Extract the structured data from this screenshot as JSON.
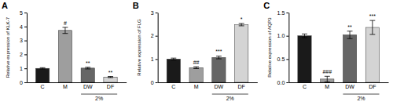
{
  "chart_data": [
    {
      "type": "bar",
      "title": "A",
      "ylabel": "Relative expression of KLK-7",
      "categories": [
        "C",
        "M",
        "DW",
        "DF"
      ],
      "values": [
        1.0,
        3.72,
        1.02,
        0.38
      ],
      "errors": [
        0.05,
        0.22,
        0.06,
        0.04
      ],
      "colors": [
        "#1a1a1a",
        "#9e9e9e",
        "#666666",
        "#d4d4d4"
      ],
      "ylim": [
        0,
        5
      ],
      "yticks": [
        0,
        1,
        2,
        3,
        4,
        5
      ],
      "annotations": [
        null,
        "#",
        "**",
        "**"
      ],
      "bracket": {
        "label": "2%",
        "categories": [
          "DW",
          "DF"
        ]
      }
    },
    {
      "type": "bar",
      "title": "B",
      "ylabel": "Relative expression of FLG",
      "categories": [
        "C",
        "M",
        "DW",
        "DF"
      ],
      "values": [
        1.0,
        0.63,
        1.07,
        2.48
      ],
      "errors": [
        0.04,
        0.04,
        0.06,
        0.05
      ],
      "colors": [
        "#1a1a1a",
        "#9e9e9e",
        "#666666",
        "#d4d4d4"
      ],
      "ylim": [
        0,
        3
      ],
      "yticks": [
        0,
        1,
        2,
        3
      ],
      "annotations": [
        null,
        "##",
        "***",
        "*"
      ],
      "bracket": {
        "label": "2%",
        "categories": [
          "DW",
          "DF"
        ]
      }
    },
    {
      "type": "bar",
      "title": "C",
      "ylabel": "Relative expression of AQP3",
      "categories": [
        "C",
        "M",
        "DW",
        "DF"
      ],
      "values": [
        1.0,
        0.07,
        1.02,
        1.18
      ],
      "errors": [
        0.04,
        0.06,
        0.08,
        0.15
      ],
      "colors": [
        "#1a1a1a",
        "#9e9e9e",
        "#666666",
        "#d4d4d4"
      ],
      "ylim": [
        0,
        1.5
      ],
      "yticks": [
        {
          "value": 0.0,
          "label": "0.0"
        },
        0.5,
        {
          "value": 1.0,
          "label": "1.0"
        },
        1.5
      ],
      "annotations": [
        null,
        "###",
        "**",
        "***"
      ],
      "bracket": {
        "label": "2%",
        "categories": [
          "DW",
          "DF"
        ]
      }
    }
  ]
}
